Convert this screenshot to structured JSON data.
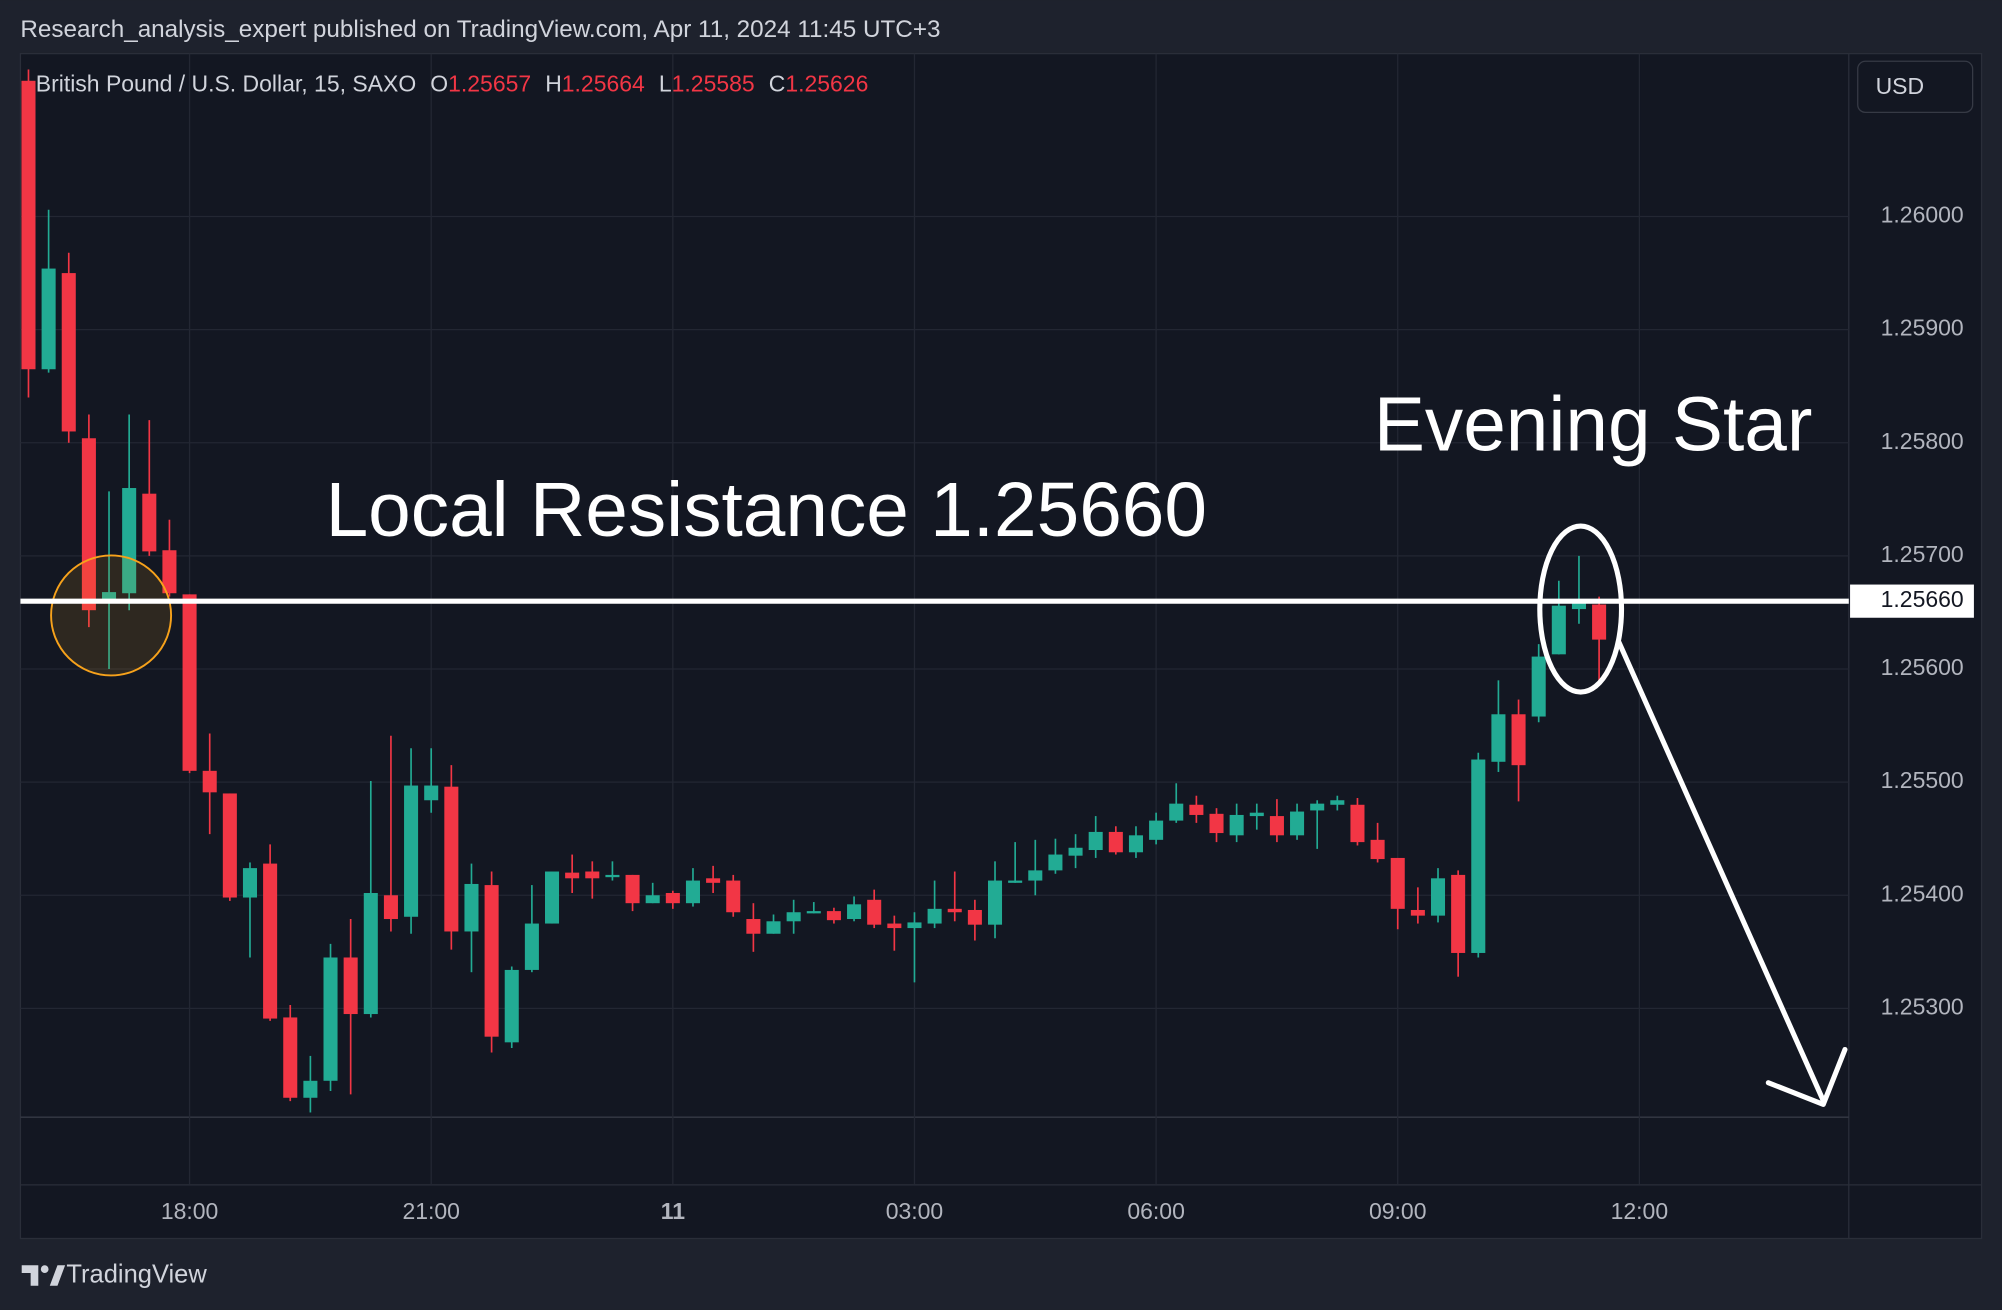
{
  "chart_data": {
    "type": "candlestick",
    "published": "Research_analysis_expert published on TradingView.com, Apr 11, 2024 11:45 UTC+3",
    "title": "British Pound / U.S. Dollar, 15, SAXO",
    "ohlc_labels": [
      "O",
      "H",
      "L",
      "C"
    ],
    "currency": "USD",
    "brand": "TradingView",
    "up_color": "#22ab94",
    "down_color": "#f23645",
    "grid": true,
    "open": [
      1.2612,
      1.25865,
      1.2595,
      1.25804,
      1.2566,
      1.25667,
      1.25755,
      1.25705,
      1.25666,
      1.2551,
      1.2549,
      1.25398,
      1.25428,
      1.25292,
      1.25221,
      1.25236,
      1.25345,
      1.25295,
      1.254,
      1.25381,
      1.25484,
      1.25496,
      1.25368,
      1.25409,
      1.2527,
      1.25334,
      1.25375,
      1.2542,
      1.25421,
      1.25416,
      1.25418,
      1.25393,
      1.25402,
      1.25393,
      1.25415,
      1.25413,
      1.25379,
      1.25366,
      1.25377,
      1.25384,
      1.25386,
      1.25379,
      1.25396,
      1.25375,
      1.25371,
      1.25375,
      1.25388,
      1.25387,
      1.25374,
      1.25411,
      1.25413,
      1.25422,
      1.25435,
      1.2544,
      1.25456,
      1.25438,
      1.25449,
      1.25466,
      1.2548,
      1.25472,
      1.25453,
      1.2547,
      1.2547,
      1.25453,
      1.25475,
      1.2548,
      1.2548,
      1.25449,
      1.25433,
      1.25387,
      1.25382,
      1.25418,
      1.25349,
      1.25518,
      1.2556,
      1.25558,
      1.25613,
      1.25653,
      1.25657
    ],
    "high": [
      1.2613,
      1.26006,
      1.25968,
      1.25825,
      1.25757,
      1.25825,
      1.2582,
      1.25732,
      1.25666,
      1.25543,
      1.2549,
      1.25429,
      1.25445,
      1.25303,
      1.25258,
      1.25357,
      1.25379,
      1.25501,
      1.25541,
      1.2553,
      1.2553,
      1.25515,
      1.25428,
      1.25421,
      1.25337,
      1.25409,
      1.25421,
      1.25436,
      1.2543,
      1.2543,
      1.25418,
      1.25411,
      1.25404,
      1.25424,
      1.25426,
      1.25418,
      1.25393,
      1.25383,
      1.25396,
      1.25394,
      1.25389,
      1.25399,
      1.25405,
      1.25382,
      1.25385,
      1.25413,
      1.25421,
      1.25396,
      1.2543,
      1.25447,
      1.25449,
      1.2545,
      1.25454,
      1.2547,
      1.25461,
      1.25461,
      1.25473,
      1.25499,
      1.25488,
      1.25477,
      1.25481,
      1.25481,
      1.25485,
      1.25481,
      1.25484,
      1.25488,
      1.25486,
      1.25464,
      1.25433,
      1.25407,
      1.25424,
      1.25422,
      1.25526,
      1.2559,
      1.25573,
      1.25622,
      1.25678,
      1.257,
      1.25664
    ],
    "low": [
      1.2584,
      1.25862,
      1.258,
      1.25637,
      1.256,
      1.25652,
      1.257,
      1.25664,
      1.25508,
      1.25454,
      1.25395,
      1.25345,
      1.25289,
      1.25218,
      1.25208,
      1.25227,
      1.25224,
      1.25292,
      1.25368,
      1.25366,
      1.25473,
      1.25352,
      1.25332,
      1.25261,
      1.25265,
      1.25332,
      1.25375,
      1.25402,
      1.25397,
      1.25413,
      1.25386,
      1.25393,
      1.25388,
      1.2539,
      1.25402,
      1.25381,
      1.2535,
      1.25366,
      1.25366,
      1.25384,
      1.25375,
      1.25377,
      1.25371,
      1.25351,
      1.25323,
      1.25371,
      1.25377,
      1.2536,
      1.25362,
      1.25411,
      1.254,
      1.25419,
      1.25424,
      1.25433,
      1.25436,
      1.25433,
      1.25445,
      1.25464,
      1.25464,
      1.25447,
      1.25447,
      1.25458,
      1.25447,
      1.25449,
      1.25441,
      1.25475,
      1.25444,
      1.25429,
      1.2537,
      1.25375,
      1.25376,
      1.25328,
      1.25345,
      1.25509,
      1.25483,
      1.25553,
      1.25613,
      1.2564,
      1.25585
    ],
    "close": [
      1.25865,
      1.25954,
      1.2581,
      1.25652,
      1.25668,
      1.2576,
      1.25704,
      1.25667,
      1.2551,
      1.25491,
      1.25398,
      1.25424,
      1.25291,
      1.25221,
      1.25236,
      1.25345,
      1.25295,
      1.25402,
      1.25379,
      1.25497,
      1.25497,
      1.25368,
      1.2541,
      1.25275,
      1.25334,
      1.25375,
      1.25421,
      1.25415,
      1.25415,
      1.25418,
      1.25393,
      1.254,
      1.25393,
      1.25413,
      1.25411,
      1.25385,
      1.25366,
      1.25377,
      1.25385,
      1.25386,
      1.25378,
      1.25392,
      1.25374,
      1.25371,
      1.25376,
      1.25388,
      1.25385,
      1.25374,
      1.25413,
      1.25413,
      1.25422,
      1.25436,
      1.25442,
      1.25456,
      1.25438,
      1.25453,
      1.25466,
      1.25481,
      1.25471,
      1.25455,
      1.25471,
      1.25473,
      1.25453,
      1.25474,
      1.25481,
      1.25484,
      1.25447,
      1.25432,
      1.25388,
      1.25382,
      1.25415,
      1.25349,
      1.2552,
      1.2556,
      1.25515,
      1.25611,
      1.25656,
      1.25658,
      1.25626
    ],
    "xlim": [
      -0.4,
      90.4
    ],
    "xticks": [
      {
        "value": 8,
        "label": "18:00"
      },
      {
        "value": 20,
        "label": "21:00"
      },
      {
        "value": 32,
        "label": "11"
      },
      {
        "value": 44,
        "label": "03:00"
      },
      {
        "value": 56,
        "label": "06:00"
      },
      {
        "value": 68,
        "label": "09:00"
      },
      {
        "value": 80,
        "label": "12:00"
      }
    ],
    "ylim": [
      1.25144,
      1.26144
    ],
    "yticks": [
      {
        "value": 1.253,
        "label": "1.25300"
      },
      {
        "value": 1.254,
        "label": "1.25400"
      },
      {
        "value": 1.255,
        "label": "1.25500"
      },
      {
        "value": 1.256,
        "label": "1.25600"
      },
      {
        "value": 1.257,
        "label": "1.25700"
      },
      {
        "value": 1.258,
        "label": "1.25800"
      },
      {
        "value": 1.259,
        "label": "1.25900"
      },
      {
        "value": 1.26,
        "label": "1.26000"
      }
    ],
    "resistance": {
      "value": 1.2566,
      "label": "1.25660"
    },
    "annotations": [
      "Local Resistance 1.25660",
      "Evening Star"
    ]
  }
}
